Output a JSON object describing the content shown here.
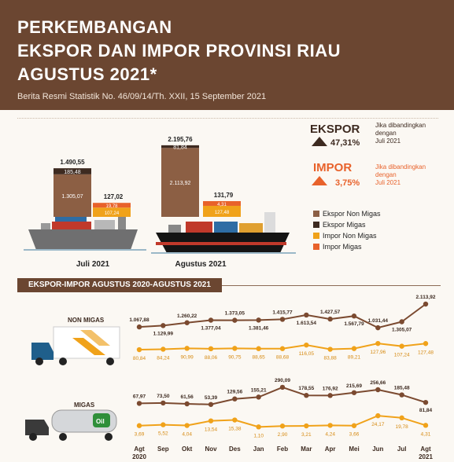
{
  "header": {
    "title_line1": "PERKEMBANGAN",
    "title_line2": "EKSPOR DAN IMPOR PROVINSI RIAU",
    "title_line3": "AGUSTUS 2021*",
    "subtitle": "Berita Resmi Statistik No. 46/09/14/Th. XXII, 15 September 2021"
  },
  "summary": {
    "ekspor_label": "EKSPOR",
    "ekspor_pct": "47,31%",
    "ekspor_note": [
      "Jika dibandingkan",
      "dengan",
      "Juli 2021"
    ],
    "impor_label": "IMPOR",
    "impor_pct": "3,75%",
    "impor_note": [
      "Jika dibandingkan",
      "dengan",
      "Juli 2021"
    ]
  },
  "legend": [
    {
      "label": "Ekspor Non Migas",
      "color": "#8c5f44"
    },
    {
      "label": "Ekspor Migas",
      "color": "#3d2a20"
    },
    {
      "label": "Impor Non Migas",
      "color": "#f0a21a"
    },
    {
      "label": "Impor Migas",
      "color": "#e8622b"
    }
  ],
  "section_title": "EKSPOR-IMPOR AGUSTUS 2020-AGUSTUS 2021",
  "row_labels": {
    "non_migas": "NON MIGAS",
    "migas": "MIGAS"
  },
  "truck_logo": "Oil",
  "colors": {
    "header": "#6b4631",
    "ekspor_line": "#7b4a30",
    "impor_line": "#f0a21a",
    "ekspor_non_migas": "#8c5f44",
    "ekspor_migas": "#3d2a20",
    "impor_non_migas": "#f0a21a",
    "impor_migas": "#e8622b"
  },
  "chart_data": [
    {
      "type": "bar",
      "categories": [
        "Juli 2021",
        "Agustus 2021"
      ],
      "ekspor": {
        "total": [
          "1.490,55",
          "2.195,76"
        ],
        "non_migas": [
          1305.07,
          2113.92
        ],
        "migas": [
          185.48,
          81.84
        ],
        "non_migas_labels": [
          "1.305,07",
          "2.113,92"
        ],
        "migas_labels": [
          "185,48",
          "81,84"
        ]
      },
      "impor": {
        "total": [
          "127,02",
          "131,79"
        ],
        "non_migas": [
          107.24,
          127.48
        ],
        "migas": [
          19.78,
          4.31
        ],
        "non_migas_labels": [
          "107,24",
          "127,48"
        ],
        "migas_labels": [
          "19,78",
          "4,31"
        ]
      }
    },
    {
      "type": "line",
      "categories": [
        "Agt 2020",
        "Sep",
        "Okt",
        "Nov",
        "Des",
        "Jan",
        "Feb",
        "Mar",
        "Apr",
        "Mei",
        "Jun",
        "Jul",
        "Agt 2021"
      ],
      "series": [
        {
          "name": "NON MIGAS ekspor",
          "values": [
            1067.88,
            1129.99,
            1260.22,
            1377.04,
            1373.05,
            1381.46,
            1415.77,
            1613.54,
            1427.57,
            1567.79,
            1031.44,
            1305.07,
            2113.92
          ],
          "labels": [
            "1.067,88",
            "1.129,99",
            "1.260,22",
            "1.377,04",
            "1.373,05",
            "1.381,46",
            "1.415,77",
            "1.613,54",
            "1.427,57",
            "1.567,79",
            "1.031,44",
            "1.305,07",
            "2.113,92"
          ]
        },
        {
          "name": "NON MIGAS impor",
          "values": [
            80.84,
            84.24,
            90.99,
            88.06,
            90.75,
            88.65,
            88.68,
            116.05,
            83.88,
            89.21,
            127.96,
            107.24,
            127.48
          ],
          "labels": [
            "80,84",
            "84,24",
            "90,99",
            "88,06",
            "90,75",
            "88,65",
            "88,68",
            "116,05",
            "83,88",
            "89,21",
            "127,96",
            "107,24",
            "127,48"
          ]
        },
        {
          "name": "MIGAS ekspor",
          "values": [
            67.97,
            73.5,
            61.56,
            53.39,
            129.56,
            155.21,
            290.09,
            178.55,
            176.92,
            215.69,
            256.66,
            185.48,
            81.84
          ],
          "labels": [
            "67,97",
            "73,50",
            "61,56",
            "53,39",
            "129,56",
            "155,21",
            "290,09",
            "178,55",
            "176,92",
            "215,69",
            "256,66",
            "185,48",
            "81,84"
          ]
        },
        {
          "name": "MIGAS impor",
          "values": [
            3.69,
            5.52,
            4.04,
            13.54,
            15.38,
            1.1,
            2.9,
            3.21,
            4.24,
            3.66,
            24.17,
            19.78,
            4.31
          ],
          "labels": [
            "3,69",
            "5,52",
            "4,04",
            "13,54",
            "15,38",
            "1,10",
            "2,90",
            "3,21",
            "4,24",
            "3,66",
            "24,17",
            "19,78",
            "4,31"
          ]
        }
      ]
    }
  ]
}
